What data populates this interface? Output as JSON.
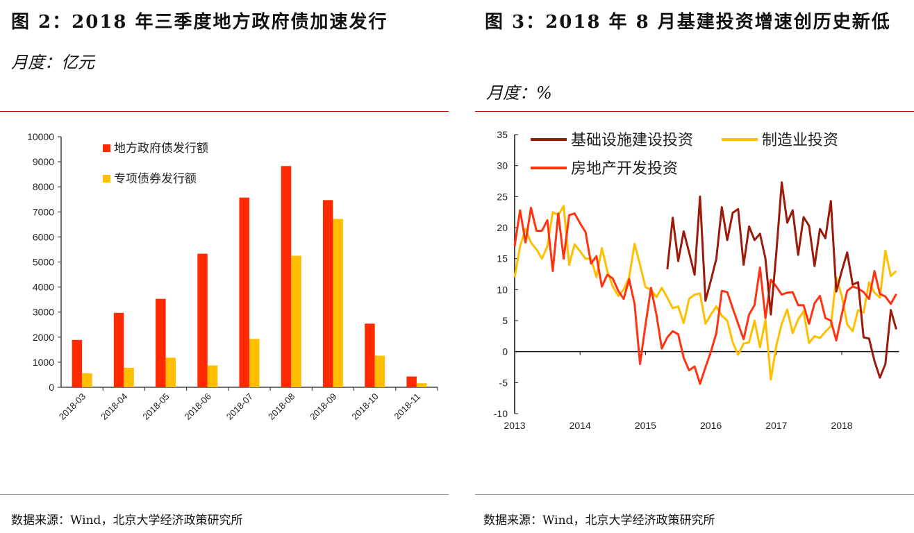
{
  "left": {
    "title": "图 2：2018 年三季度地方政府债加速发行",
    "unit": "月度：亿元",
    "source": "数据来源：Wind，北京大学经济政策研究所"
  },
  "right": {
    "title": "图 3：2018 年 8 月基建投资增速创历史新低",
    "unit": "月度：%",
    "source": "数据来源：Wind，北京大学经济政策研究所"
  },
  "chart_data": [
    {
      "type": "bar",
      "categories": [
        "2018-03",
        "2018-04",
        "2018-05",
        "2018-06",
        "2018-07",
        "2018-08",
        "2018-09",
        "2018-10",
        "2018-11"
      ],
      "series": [
        {
          "name": "地方政府债发行额",
          "color": "#ff2a00",
          "values": [
            1890,
            2970,
            3530,
            5330,
            7570,
            8830,
            7470,
            2540,
            430
          ]
        },
        {
          "name": "专项债券发行额",
          "color": "#ffbf00",
          "values": [
            560,
            780,
            1180,
            870,
            1930,
            5250,
            6720,
            1260,
            160
          ]
        }
      ],
      "ylim": [
        0,
        10000
      ],
      "yticks": [
        0,
        1000,
        2000,
        3000,
        4000,
        5000,
        6000,
        7000,
        8000,
        9000,
        10000
      ],
      "legend": "top-left",
      "grid": false
    },
    {
      "type": "line",
      "x_start": "2013-01",
      "x_frequency": "monthly",
      "xticks": [
        "2013",
        "2014",
        "2015",
        "2016",
        "2017",
        "2018"
      ],
      "ylim": [
        -10,
        35
      ],
      "yticks": [
        -10,
        -5,
        0,
        5,
        10,
        15,
        20,
        25,
        30,
        35
      ],
      "legend": "top",
      "grid": false,
      "series": [
        {
          "name": "基础设施建设投资",
          "color": "#9b1a0a",
          "values": [
            null,
            null,
            null,
            null,
            null,
            null,
            null,
            null,
            null,
            null,
            null,
            null,
            null,
            null,
            null,
            null,
            null,
            null,
            null,
            null,
            null,
            null,
            null,
            null,
            null,
            null,
            null,
            null,
            13.3,
            21.6,
            14.6,
            19.4,
            16,
            12.4,
            25,
            8.2,
            11.5,
            15,
            23.3,
            18,
            22.4,
            23,
            14,
            20.2,
            18,
            19,
            15,
            6,
            16,
            27.3,
            20.8,
            22.8,
            15.6,
            21.7,
            20.3,
            13.8,
            19.8,
            18.3,
            24.3,
            9.7,
            13,
            16,
            10.8,
            11.2,
            2.3,
            2.1,
            -1.5,
            -4.2,
            -2,
            6.7,
            3.6
          ]
        },
        {
          "name": "制造业投资",
          "color": "#ffbf00",
          "values": [
            12,
            17,
            19.8,
            17.6,
            16.5,
            15,
            17,
            22.5,
            22,
            23.5,
            14,
            17.3,
            16.2,
            15,
            15,
            12,
            16.7,
            13,
            10.5,
            9,
            10,
            12,
            17.4,
            14,
            10.4,
            10,
            8.8,
            10.3,
            8.7,
            7,
            7.3,
            4.6,
            8.5,
            9.2,
            9.4,
            4.5,
            6,
            7.3,
            5.8,
            5,
            1.5,
            -0.5,
            1.3,
            1.5,
            5,
            0.7,
            5.1,
            -4.5,
            1,
            4.5,
            6.8,
            3,
            5.2,
            6.5,
            1.4,
            2.5,
            2.2,
            3.2,
            4.1,
            12,
            9,
            4.4,
            3.3,
            6.7,
            6.3,
            11.2,
            9.5,
            8.7,
            16.3,
            12.2,
            13
          ]
        },
        {
          "name": "房地产开发投资",
          "color": "#ff3311",
          "values": [
            17,
            22.8,
            17.6,
            23.2,
            19.5,
            19.5,
            21.2,
            13,
            22.3,
            15,
            22,
            22.3,
            20.7,
            19.3,
            14.2,
            15.4,
            10.5,
            12.4,
            11.8,
            9.8,
            8.5,
            11.7,
            7.7,
            -2,
            4.3,
            10.3,
            6,
            0.5,
            2.3,
            3.3,
            2.8,
            -1,
            -3,
            -2.4,
            -5.2,
            -2.5,
            0,
            3,
            9.8,
            9.6,
            7,
            4.5,
            2,
            6,
            7.5,
            13.6,
            5.4,
            11.6,
            10.5,
            9.2,
            9.5,
            9.6,
            7.5,
            7.5,
            4.5,
            7.8,
            9,
            5.4,
            5,
            1.8,
            6,
            9.8,
            10.5,
            10.2,
            9.6,
            8.5,
            13,
            9.3,
            8.9,
            7.7,
            9.3
          ]
        }
      ]
    }
  ]
}
